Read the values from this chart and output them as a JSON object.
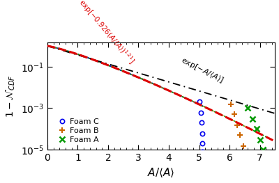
{
  "xlim": [
    0,
    7.5
  ],
  "ylim": [
    1e-05,
    1.5
  ],
  "foam_A_color": "#009900",
  "foam_B_color": "#cc6600",
  "foam_C_color": "#0000ee",
  "stretched_color": "#dd0000",
  "simple_color": "#000000",
  "gray_color": "#aaaaaa",
  "foam_A_label": "Foam A",
  "foam_B_label": "Foam B",
  "foam_C_label": "Foam C",
  "ann_simple": "exp[-A/⟨A⟩]",
  "ann_stretched": "exp[-0.926(A/⟨A⟩)^{1.21}]"
}
